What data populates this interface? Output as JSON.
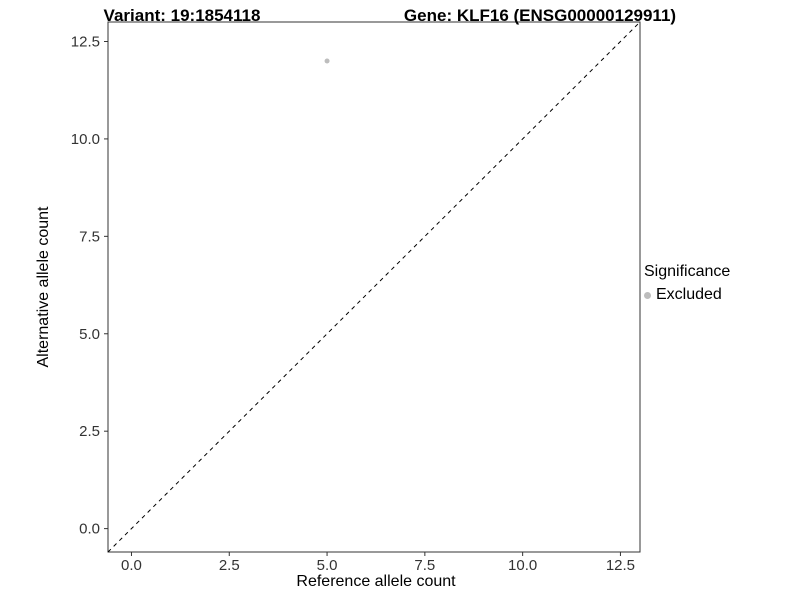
{
  "header": {
    "variant_title": "Variant: 19:1854118",
    "gene_title": "Gene: KLF16 (ENSG00000129911)"
  },
  "legend": {
    "title": "Significance",
    "items": [
      {
        "label": "Excluded",
        "color": "#bdbdbd"
      }
    ]
  },
  "chart_data": {
    "type": "scatter",
    "title": "Variant: 19:1854118 — Gene: KLF16 (ENSG00000129911)",
    "xlabel": "Reference allele count",
    "ylabel": "Alternative allele count",
    "xlim": [
      -0.6,
      13.0
    ],
    "ylim": [
      -0.6,
      13.0
    ],
    "xticks": [
      0.0,
      2.5,
      5.0,
      7.5,
      10.0,
      12.5
    ],
    "yticks": [
      0.0,
      2.5,
      5.0,
      7.5,
      10.0,
      12.5
    ],
    "grid": false,
    "legend_position": "right",
    "panel_border_color": "#333333",
    "tick_label_color": "#333333",
    "series": [
      {
        "name": "Excluded",
        "color": "#bdbdbd",
        "points": [
          {
            "x": 5,
            "y": 12
          }
        ]
      }
    ],
    "reference_line": {
      "type": "abline",
      "slope": 1,
      "intercept": 0,
      "style": "dashed",
      "color": "#000000"
    }
  }
}
